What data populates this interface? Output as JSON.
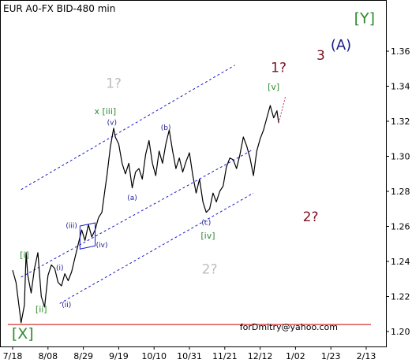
{
  "chart_data": {
    "type": "line",
    "title": "EUR A0-FX BID-480 min",
    "watermark": "forDmitry@yahoo.com",
    "x_tick_labels": [
      "7/18",
      "8/08",
      "8/29",
      "9/19",
      "10/10",
      "10/31",
      "11/21",
      "12/12",
      "1/02",
      "1/23",
      "2/13"
    ],
    "y_tick_labels": [
      "1.20",
      "1.22",
      "1.24",
      "1.26",
      "1.28",
      "1.30",
      "1.32",
      "1.34",
      "1.36"
    ],
    "y_ticks": [
      1.2,
      1.22,
      1.24,
      1.26,
      1.28,
      1.3,
      1.32,
      1.34,
      1.36
    ],
    "ylim": [
      1.192,
      1.385
    ],
    "x_day_range": [
      0,
      217
    ],
    "grid": false,
    "support_line_level": 1.204,
    "series": [
      {
        "points": [
          [
            0,
            1.235
          ],
          [
            2,
            1.228
          ],
          [
            4,
            1.213
          ],
          [
            5,
            1.205
          ],
          [
            7,
            1.215
          ],
          [
            8,
            1.245
          ],
          [
            9,
            1.232
          ],
          [
            11,
            1.222
          ],
          [
            13,
            1.236
          ],
          [
            15,
            1.245
          ],
          [
            17,
            1.22
          ],
          [
            19,
            1.214
          ],
          [
            21,
            1.232
          ],
          [
            23,
            1.238
          ],
          [
            25,
            1.236
          ],
          [
            27,
            1.228
          ],
          [
            29,
            1.226
          ],
          [
            31,
            1.233
          ],
          [
            33,
            1.229
          ],
          [
            35,
            1.234
          ],
          [
            37,
            1.242
          ],
          [
            39,
            1.25
          ],
          [
            41,
            1.258
          ],
          [
            43,
            1.252
          ],
          [
            45,
            1.261
          ],
          [
            47,
            1.254
          ],
          [
            49,
            1.258
          ],
          [
            51,
            1.265
          ],
          [
            53,
            1.268
          ],
          [
            55,
            1.282
          ],
          [
            56,
            1.289
          ],
          [
            58,
            1.305
          ],
          [
            60,
            1.316
          ],
          [
            61,
            1.311
          ],
          [
            63,
            1.307
          ],
          [
            65,
            1.296
          ],
          [
            67,
            1.29
          ],
          [
            69,
            1.296
          ],
          [
            71,
            1.282
          ],
          [
            73,
            1.291
          ],
          [
            75,
            1.293
          ],
          [
            77,
            1.287
          ],
          [
            79,
            1.301
          ],
          [
            81,
            1.309
          ],
          [
            83,
            1.296
          ],
          [
            85,
            1.289
          ],
          [
            87,
            1.303
          ],
          [
            89,
            1.296
          ],
          [
            91,
            1.307
          ],
          [
            93,
            1.315
          ],
          [
            95,
            1.303
          ],
          [
            97,
            1.293
          ],
          [
            99,
            1.299
          ],
          [
            101,
            1.291
          ],
          [
            103,
            1.297
          ],
          [
            105,
            1.302
          ],
          [
            107,
            1.289
          ],
          [
            109,
            1.279
          ],
          [
            111,
            1.287
          ],
          [
            113,
            1.274
          ],
          [
            115,
            1.268
          ],
          [
            117,
            1.27
          ],
          [
            119,
            1.279
          ],
          [
            121,
            1.274
          ],
          [
            123,
            1.28
          ],
          [
            125,
            1.283
          ],
          [
            127,
            1.294
          ],
          [
            129,
            1.299
          ],
          [
            131,
            1.298
          ],
          [
            133,
            1.293
          ],
          [
            135,
            1.301
          ],
          [
            137,
            1.311
          ],
          [
            139,
            1.306
          ],
          [
            141,
            1.299
          ],
          [
            143,
            1.289
          ],
          [
            145,
            1.303
          ],
          [
            147,
            1.31
          ],
          [
            149,
            1.315
          ],
          [
            151,
            1.322
          ],
          [
            153,
            1.329
          ],
          [
            155,
            1.322
          ],
          [
            157,
            1.326
          ],
          [
            158,
            1.319
          ]
        ]
      }
    ],
    "wave_labels": [
      {
        "text": "[X]",
        "d": 6,
        "v": 1.196,
        "color": "#2e8b2e",
        "size": 19,
        "weight": "normal"
      },
      {
        "text": "[Y]",
        "d": 209,
        "v": 1.376,
        "color": "#2e8b2e",
        "size": 19,
        "weight": "normal"
      },
      {
        "text": "(A)",
        "d": 195,
        "v": 1.361,
        "color": "#1a1a8c",
        "size": 18,
        "weight": "normal"
      },
      {
        "text": "3",
        "d": 183,
        "v": 1.355,
        "color": "#7a1020",
        "size": 17,
        "weight": "normal"
      },
      {
        "text": "1?",
        "d": 158,
        "v": 1.348,
        "color": "#7a1020",
        "size": 17,
        "weight": "normal"
      },
      {
        "text": "2?",
        "d": 177,
        "v": 1.263,
        "color": "#7a1020",
        "size": 17,
        "weight": "normal"
      },
      {
        "text": "1?",
        "d": 60,
        "v": 1.339,
        "color": "#bdbdbd",
        "size": 17,
        "weight": "normal"
      },
      {
        "text": "2?",
        "d": 117,
        "v": 1.233,
        "color": "#bdbdbd",
        "size": 17,
        "weight": "normal"
      },
      {
        "text": "x [iii]",
        "d": 55,
        "v": 1.324,
        "color": "#2e8b2e",
        "size": 11,
        "weight": "normal"
      },
      {
        "text": "[v]",
        "d": 155,
        "v": 1.338,
        "color": "#2e8b2e",
        "size": 11,
        "weight": "normal"
      },
      {
        "text": "[i]",
        "d": 7,
        "v": 1.242,
        "color": "#2e8b2e",
        "size": 11,
        "weight": "normal"
      },
      {
        "text": "[ii]",
        "d": 17,
        "v": 1.211,
        "color": "#2e8b2e",
        "size": 11,
        "weight": "normal"
      },
      {
        "text": "[iv]",
        "d": 116,
        "v": 1.253,
        "color": "#2e8b2e",
        "size": 11,
        "weight": "normal"
      },
      {
        "text": "(v)",
        "d": 59,
        "v": 1.318,
        "color": "#1a1a8c",
        "size": 9,
        "weight": "normal"
      },
      {
        "text": "(b)",
        "d": 91,
        "v": 1.315,
        "color": "#1a1a8c",
        "size": 9,
        "weight": "normal"
      },
      {
        "text": "(a)",
        "d": 71,
        "v": 1.275,
        "color": "#1a1a8c",
        "size": 9,
        "weight": "normal"
      },
      {
        "text": "(c)",
        "d": 115,
        "v": 1.261,
        "color": "#1a1a8c",
        "size": 9,
        "weight": "normal"
      },
      {
        "text": "(iii)",
        "d": 35,
        "v": 1.259,
        "color": "#1a1a8c",
        "size": 9,
        "weight": "normal"
      },
      {
        "text": "(iv)",
        "d": 53,
        "v": 1.248,
        "color": "#1a1a8c",
        "size": 9,
        "weight": "normal"
      },
      {
        "text": "(i)",
        "d": 28,
        "v": 1.235,
        "color": "#1a1a8c",
        "size": 9,
        "weight": "normal"
      },
      {
        "text": "(ii)",
        "d": 32,
        "v": 1.214,
        "color": "#1a1a8c",
        "size": 9,
        "weight": "normal"
      }
    ],
    "channel_lines": [
      {
        "d1": 5,
        "v1": 1.281,
        "d2": 132,
        "v2": 1.352
      },
      {
        "d1": 5,
        "v1": 1.231,
        "d2": 143,
        "v2": 1.304
      },
      {
        "d1": 28,
        "v1": 1.216,
        "d2": 143,
        "v2": 1.279
      }
    ],
    "projection_line": {
      "d1": 158,
      "v1": 1.319,
      "d2": 162,
      "v2": 1.334
    },
    "colors": {
      "price": "#000000",
      "channel": "#1a1acc",
      "support": "#cc0000",
      "projection": "#cc3355"
    }
  }
}
